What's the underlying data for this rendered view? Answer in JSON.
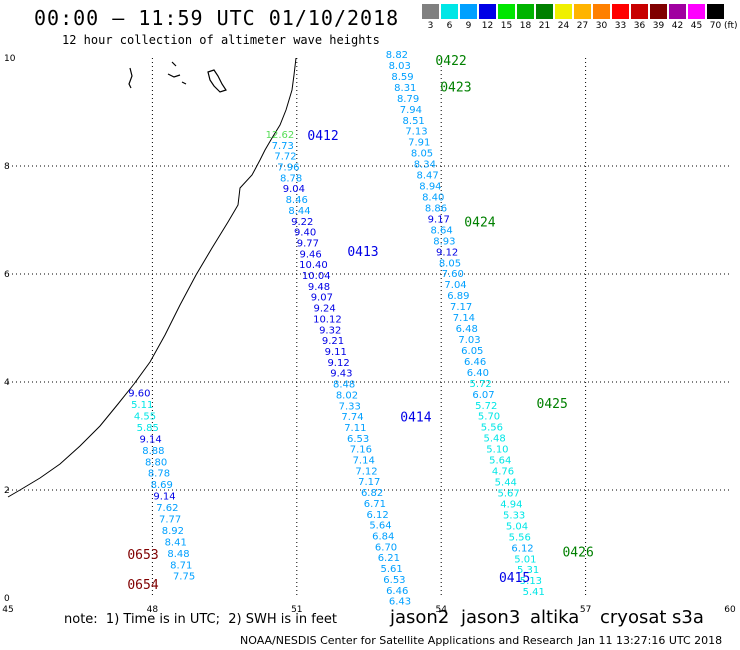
{
  "header": {
    "title": "00:00 – 11:59 UTC 01/10/2018",
    "subtitle": "12 hour collection of altimeter wave heights"
  },
  "colorbar": {
    "unit": "(ft)",
    "items": [
      {
        "label": "3",
        "color": "#808080"
      },
      {
        "label": "6",
        "color": "#00e6e6"
      },
      {
        "label": "9",
        "color": "#00a0ff"
      },
      {
        "label": "12",
        "color": "#0000e6"
      },
      {
        "label": "15",
        "color": "#00e600"
      },
      {
        "label": "18",
        "color": "#00b400"
      },
      {
        "label": "21",
        "color": "#008000"
      },
      {
        "label": "24",
        "color": "#f0f000"
      },
      {
        "label": "27",
        "color": "#ffb400"
      },
      {
        "label": "30",
        "color": "#ff8000"
      },
      {
        "label": "33",
        "color": "#ff0000"
      },
      {
        "label": "36",
        "color": "#c80000"
      },
      {
        "label": "39",
        "color": "#800000"
      },
      {
        "label": "42",
        "color": "#a000a0"
      },
      {
        "label": "45",
        "color": "#ff00ff"
      },
      {
        "label": "70",
        "color": "#000000"
      }
    ]
  },
  "axes": {
    "lon_ticks": [
      "45",
      "48",
      "51",
      "54",
      "57",
      "60"
    ],
    "lat_ticks": [
      "0",
      "2",
      "4",
      "6",
      "8",
      "10"
    ]
  },
  "tracks": [
    {
      "lon": 50.65,
      "lat_top": 8.52,
      "lat_bottom": 3.78,
      "values": [
        "12.62",
        "7.73",
        "7.72",
        "7.96",
        "8.78",
        "9.04",
        "8.46",
        "8.44",
        "9.22",
        "9.40",
        "9.77",
        "9.46",
        "10.40",
        "10.04",
        "9.48",
        "9.07",
        "9.24",
        "10.12",
        "9.32",
        "9.21",
        "9.11",
        "9.12",
        "9.43",
        "8.48",
        "8.02",
        "7.33",
        "7.74",
        "7.11",
        "6.53",
        "7.16",
        "7.14",
        "7.12",
        "7.17",
        "6.82",
        "6.71",
        "6.12",
        "5.64",
        "6.84",
        "6.70",
        "6.21",
        "5.61",
        "6.53",
        "6.46",
        "6.43"
      ],
      "colors": [
        "#55dd55",
        "#00a0ff",
        "#00a0ff",
        "#00a0ff",
        "#00a0ff",
        "#0000e6",
        "#00a0ff",
        "#00a0ff",
        "#0000e6",
        "#0000e6",
        "#0000e6",
        "#0000e6",
        "#0000e6",
        "#0000e6",
        "#0000e6",
        "#0000e6",
        "#0000e6",
        "#0000e6",
        "#0000e6",
        "#0000e6",
        "#0000e6",
        "#0000e6",
        "#0000e6",
        "#00a0ff",
        "#00a0ff",
        "#00a0ff",
        "#00a0ff",
        "#00a0ff",
        "#00a0ff",
        "#00a0ff",
        "#00a0ff",
        "#00a0ff",
        "#00a0ff",
        "#00a0ff",
        "#00a0ff",
        "#00a0ff",
        "#00a0ff",
        "#00a0ff",
        "#00a0ff",
        "#00a0ff",
        "#00a0ff",
        "#00a0ff",
        "#00a0ff",
        "#00a0ff"
      ],
      "step_lat": 0.201
    },
    {
      "lon": 53.08,
      "lat_top": 10.0,
      "lat_bottom": 0.0,
      "values": [
        "8.82",
        "8.03",
        "8.59",
        "8.31",
        "8.79",
        "7.94",
        "8.51",
        "7.13",
        "7.91",
        "8.05",
        "8.34",
        "8.47",
        "8.94",
        "8.40",
        "8.86",
        "9.17",
        "8.64",
        "8.93",
        "9.12",
        "8.05",
        "7.60",
        "7.04",
        "6.89",
        "7.17",
        "7.14",
        "6.48",
        "7.03",
        "6.05",
        "6.46",
        "6.40",
        "5.72",
        "6.07",
        "5.72",
        "5.70",
        "5.56",
        "5.48",
        "5.10",
        "5.64",
        "4.76",
        "5.44",
        "5.67",
        "4.94",
        "5.33",
        "5.04",
        "5.56",
        "6.12",
        "5.01",
        "5.31",
        "5.13",
        "5.41"
      ],
      "colors": [
        "#00a0ff",
        "#00a0ff",
        "#00a0ff",
        "#00a0ff",
        "#00a0ff",
        "#00a0ff",
        "#00a0ff",
        "#00a0ff",
        "#00a0ff",
        "#00a0ff",
        "#00a0ff",
        "#00a0ff",
        "#00a0ff",
        "#00a0ff",
        "#00a0ff",
        "#0000e6",
        "#00a0ff",
        "#00a0ff",
        "#0000e6",
        "#00a0ff",
        "#00a0ff",
        "#00a0ff",
        "#00a0ff",
        "#00a0ff",
        "#00a0ff",
        "#00a0ff",
        "#00a0ff",
        "#00a0ff",
        "#00a0ff",
        "#00a0ff",
        "#00e6e6",
        "#00a0ff",
        "#00e6e6",
        "#00e6e6",
        "#00e6e6",
        "#00e6e6",
        "#00e6e6",
        "#00e6e6",
        "#00e6e6",
        "#00e6e6",
        "#00e6e6",
        "#00e6e6",
        "#00e6e6",
        "#00e6e6",
        "#00e6e6",
        "#00a0ff",
        "#00e6e6",
        "#00e6e6",
        "#00e6e6",
        "#00e6e6"
      ],
      "step_lat": 0.203
    },
    {
      "lon": 47.73,
      "lat_top": 3.73,
      "lat_bottom": 0.0,
      "values": [
        "9.60",
        "5.11",
        "4.55",
        "5.85",
        "9.14",
        "8.88",
        "8.80",
        "8.78",
        "8.69",
        "9.14",
        "7.62",
        "7.77",
        "8.92",
        "8.41",
        "8.48",
        "8.71",
        "7.75"
      ],
      "colors": [
        "#0000e6",
        "#00e6e6",
        "#00e6e6",
        "#00e6e6",
        "#0000e6",
        "#00a0ff",
        "#00a0ff",
        "#00a0ff",
        "#00a0ff",
        "#0000e6",
        "#00a0ff",
        "#00a0ff",
        "#00a0ff",
        "#00a0ff",
        "#00a0ff",
        "#00a0ff",
        "#00a0ff"
      ],
      "step_lat": 0.212
    }
  ],
  "pass_labels": [
    {
      "text": "0422",
      "lon": 53.88,
      "lat": 9.87,
      "color": "#008000"
    },
    {
      "text": "0423",
      "lon": 53.98,
      "lat": 9.38,
      "color": "#008000"
    },
    {
      "text": "0412",
      "lon": 51.22,
      "lat": 8.48,
      "color": "#0000e6"
    },
    {
      "text": "0424",
      "lon": 54.48,
      "lat": 6.88,
      "color": "#008000"
    },
    {
      "text": "0413",
      "lon": 52.05,
      "lat": 6.33,
      "color": "#0000e6"
    },
    {
      "text": "0425",
      "lon": 55.98,
      "lat": 3.52,
      "color": "#008000"
    },
    {
      "text": "0414",
      "lon": 53.15,
      "lat": 3.27,
      "color": "#0000e6"
    },
    {
      "text": "0426",
      "lon": 56.52,
      "lat": 0.77,
      "color": "#008000"
    },
    {
      "text": "0415",
      "lon": 55.2,
      "lat": 0.3,
      "color": "#0000e6"
    },
    {
      "text": "0653",
      "lon": 47.48,
      "lat": 0.72,
      "color": "#800000"
    },
    {
      "text": "0654",
      "lon": 47.48,
      "lat": 0.17,
      "color": "#800000"
    }
  ],
  "footer": {
    "note": "note:  1) Time is in UTC;  2) SWH is in feet",
    "satellites": [
      {
        "name": "jason2",
        "color": "#0000e6"
      },
      {
        "name": "jason3",
        "color": "#008000"
      },
      {
        "name": "altika",
        "color": "#ff9900"
      },
      {
        "name": "cryosat",
        "color": "#e00000"
      },
      {
        "name": "s3a",
        "color": "#800000"
      }
    ],
    "credit": "NOAA/NESDIS Center for Satellite Applications and Research",
    "timestamp": "Jan 11 13:27:16 UTC 2018"
  }
}
